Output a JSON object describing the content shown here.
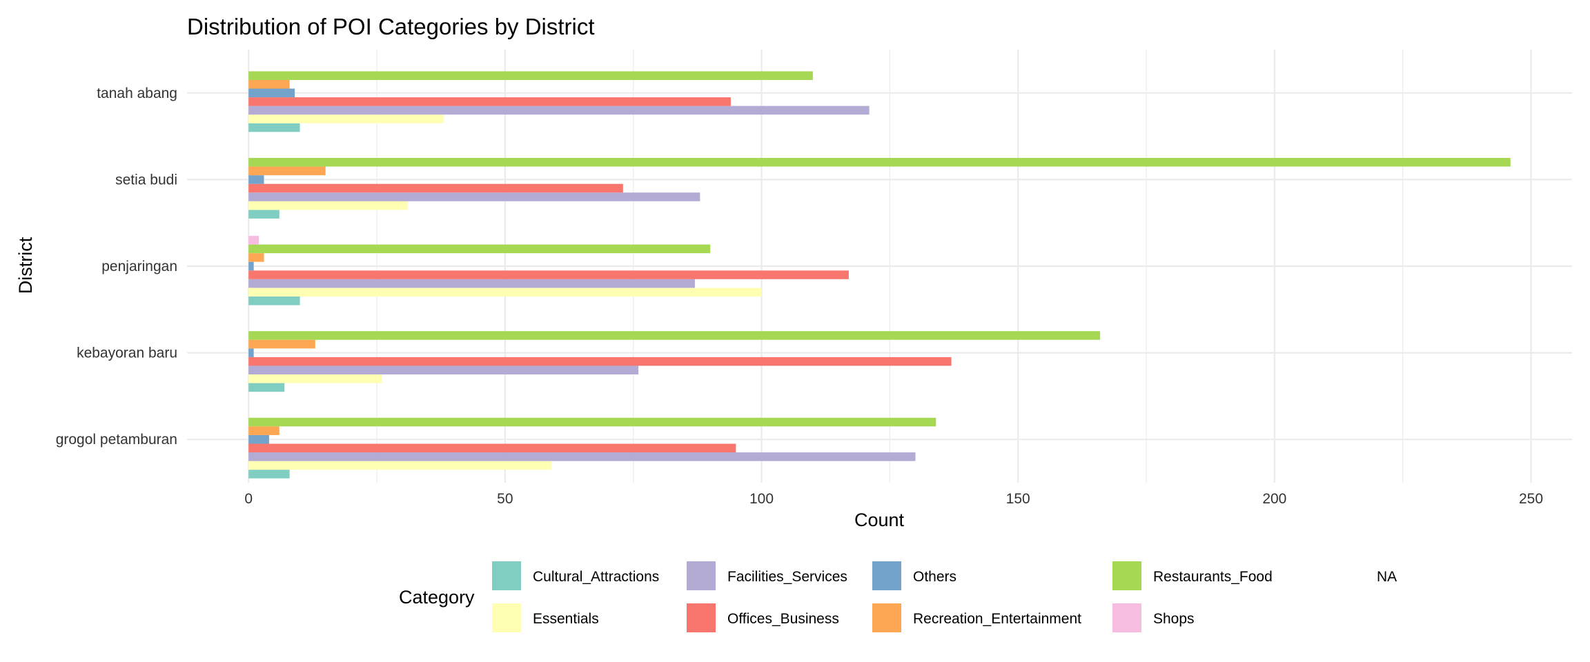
{
  "chart_data": {
    "type": "bar",
    "orientation": "horizontal",
    "title": "Distribution of POI Categories by District",
    "xlabel": "Count",
    "ylabel": "District",
    "xlim": [
      -12,
      258
    ],
    "xticks": [
      0,
      50,
      100,
      150,
      200,
      250
    ],
    "grid": true,
    "legend_title": "Category",
    "legend_position": "bottom",
    "categories": [
      "grogol petamburan",
      "kebayoran baru",
      "penjaringan",
      "setia budi",
      "tanah abang"
    ],
    "series": [
      {
        "name": "Cultural_Attractions",
        "color": "#80cdc1",
        "values": [
          8,
          7,
          10,
          6,
          10
        ]
      },
      {
        "name": "Essentials",
        "color": "#ffffb3",
        "values": [
          59,
          26,
          100,
          31,
          38
        ]
      },
      {
        "name": "Facilities_Services",
        "color": "#b3abd4",
        "values": [
          130,
          76,
          87,
          88,
          121
        ]
      },
      {
        "name": "Offices_Business",
        "color": "#f8766d",
        "values": [
          95,
          137,
          117,
          73,
          94
        ]
      },
      {
        "name": "Others",
        "color": "#73a2cb",
        "values": [
          4,
          1,
          1,
          3,
          9
        ]
      },
      {
        "name": "Recreation_Entertainment",
        "color": "#fda754",
        "values": [
          6,
          13,
          3,
          15,
          8
        ]
      },
      {
        "name": "Restaurants_Food",
        "color": "#a6d854",
        "values": [
          134,
          166,
          90,
          246,
          110
        ]
      },
      {
        "name": "Shops",
        "color": "#f7bde0",
        "values": [
          0,
          0,
          2,
          0,
          0
        ]
      },
      {
        "name": "NA",
        "color": "#ffffff",
        "values": [
          0,
          0,
          0,
          0,
          0
        ]
      }
    ],
    "legend_order": [
      "Cultural_Attractions",
      "Essentials",
      "Facilities_Services",
      "Offices_Business",
      "Others",
      "Recreation_Entertainment",
      "Restaurants_Food",
      "Shops",
      "NA"
    ]
  }
}
